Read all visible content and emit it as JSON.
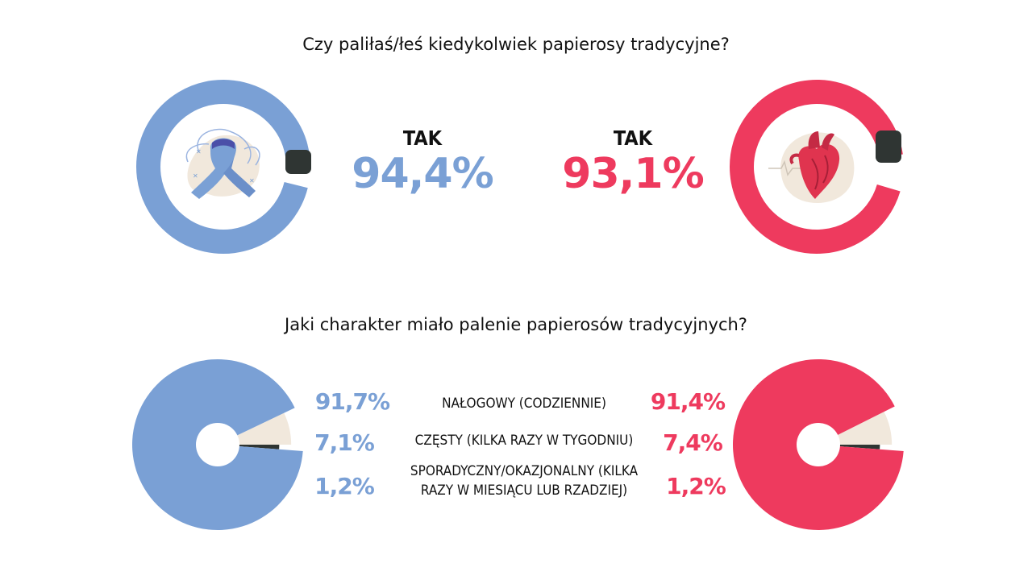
{
  "colors": {
    "blue": "#7aa0d5",
    "red": "#ee3a5e",
    "beige": "#f1e8dc",
    "dark": "#2f3533"
  },
  "question1": "Czy paliłaś/łeś kiedykolwiek papierosy tradycyjne?",
  "question2": "Jaki charakter miało palenie papierosów tradycyjnych?",
  "chart_data": [
    {
      "type": "donut",
      "series": [
        {
          "icon": "awareness-ribbon-icon",
          "answer_label": "TAK",
          "value_label": "94,4%",
          "value": 94.4,
          "color": "blue"
        },
        {
          "icon": "heart-icon",
          "answer_label": "TAK",
          "value_label": "93,1%",
          "value": 93.1,
          "color": "red"
        }
      ]
    },
    {
      "type": "pie",
      "categories": [
        "NAŁOGOWY (CODZIENNIE)",
        "CZĘSTY (KILKA RAZY W TYGODNIU)",
        "SPORADYCZNY/OKAZJONALNY (KILKA RAZY W MIESIĄCU LUB RZADZIEJ)"
      ],
      "category_lines": [
        [
          "NAŁOGOWY (CODZIENNIE)"
        ],
        [
          "CZĘSTY (KILKA RAZY W TYGODNIU)"
        ],
        [
          "SPORADYCZNY/OKAZJONALNY (KILKA",
          "RAZY W MIESIĄCU LUB RZADZIEJ)"
        ]
      ],
      "series": [
        {
          "color": "blue",
          "values": [
            91.7,
            7.1,
            1.2
          ],
          "labels": [
            "91,7%",
            "7,1%",
            "1,2%"
          ]
        },
        {
          "color": "red",
          "values": [
            91.4,
            7.4,
            1.2
          ],
          "labels": [
            "91,4%",
            "7,4%",
            "1,2%"
          ]
        }
      ]
    }
  ]
}
